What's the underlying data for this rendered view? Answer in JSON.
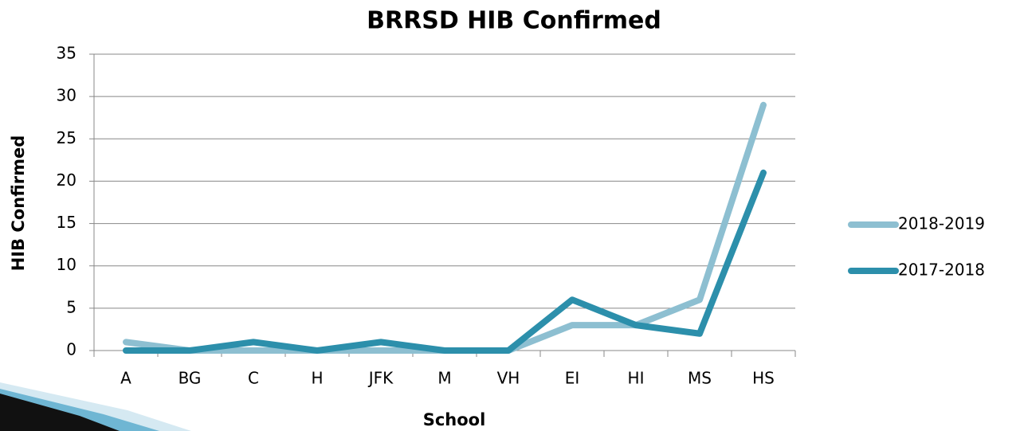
{
  "chart_data": {
    "type": "line",
    "title": "BRRSD HIB Confirmed",
    "x_label": "School",
    "y_label": "HIB Confirmed",
    "categories": [
      "A",
      "BG",
      "C",
      "H",
      "JFK",
      "M",
      "VH",
      "EI",
      "HI",
      "MS",
      "HS"
    ],
    "series": [
      {
        "name": "2018-2019",
        "color": "#8dbfd1",
        "values": [
          1,
          0,
          0,
          0,
          0,
          0,
          0,
          3,
          3,
          6,
          29
        ]
      },
      {
        "name": "2017-2018",
        "color": "#2c8fab",
        "values": [
          0,
          0,
          1,
          0,
          1,
          0,
          0,
          6,
          3,
          2,
          21
        ]
      }
    ],
    "ylim": [
      0,
      35
    ],
    "yticks": [
      0,
      5,
      10,
      15,
      20,
      25,
      30,
      35
    ],
    "grid": true,
    "legend": "right"
  }
}
